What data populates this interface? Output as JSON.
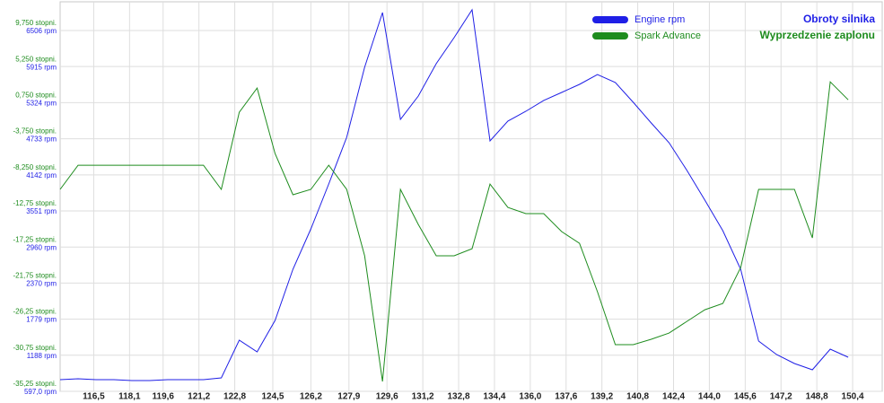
{
  "chart_data": {
    "type": "line",
    "x": [
      115.0,
      115.8,
      116.6,
      117.4,
      118.2,
      119.0,
      119.8,
      120.6,
      121.4,
      122.2,
      123.0,
      123.8,
      124.6,
      125.4,
      126.2,
      127.0,
      127.8,
      128.6,
      129.4,
      130.2,
      131.0,
      131.8,
      132.6,
      133.4,
      134.2,
      135.0,
      135.8,
      136.6,
      137.4,
      138.2,
      139.0,
      139.8,
      140.6,
      141.4,
      142.2,
      143.0,
      143.8,
      144.6,
      145.4,
      146.2,
      147.0,
      147.8,
      148.6,
      149.4,
      150.2
    ],
    "series": [
      {
        "name": "Engine rpm",
        "color": "#1f1fe6",
        "axis": "y",
        "values": [
          788,
          803,
          788,
          788,
          773,
          773,
          788,
          788,
          788,
          818,
          1435,
          1244,
          1758,
          2596,
          3258,
          3993,
          4757,
          5904,
          6800,
          5051,
          5433,
          5963,
          6389,
          6845,
          4698,
          5022,
          5183,
          5360,
          5492,
          5624,
          5786,
          5654,
          5330,
          4992,
          4669,
          4213,
          3728,
          3228,
          2596,
          1420,
          1200,
          1053,
          950,
          1288,
          1156
        ]
      },
      {
        "name": "Spark Advance",
        "color": "#1e8c1e",
        "axis": "y2",
        "values": [
          -10.07,
          -7.05,
          -7.05,
          -7.05,
          -7.05,
          -7.05,
          -7.05,
          -7.05,
          -7.05,
          -10.07,
          -0.45,
          2.57,
          -5.6,
          -10.74,
          -10.07,
          -7.05,
          -10.07,
          -18.35,
          -34.02,
          -10.07,
          -14.44,
          -18.35,
          -18.35,
          -17.46,
          -9.4,
          -12.31,
          -13.09,
          -13.09,
          -15.33,
          -16.79,
          -22.83,
          -29.43,
          -29.43,
          -28.76,
          -27.98,
          -26.52,
          -25.07,
          -24.29,
          -19.81,
          -10.07,
          -10.07,
          -10.07,
          -16.12,
          3.35,
          1.11
        ]
      }
    ],
    "y_label": "Obroty silnika",
    "y2_label": "Wyprzedzenie zaplonu",
    "xlim": [
      115.0,
      151.72
    ],
    "xticks": [
      {
        "value": 116.5,
        "label": "116,5"
      },
      {
        "value": 118.1,
        "label": "118,1"
      },
      {
        "value": 119.6,
        "label": "119,6"
      },
      {
        "value": 121.2,
        "label": "121,2"
      },
      {
        "value": 122.8,
        "label": "122,8"
      },
      {
        "value": 124.5,
        "label": "124,5"
      },
      {
        "value": 126.2,
        "label": "126,2"
      },
      {
        "value": 127.9,
        "label": "127,9"
      },
      {
        "value": 129.6,
        "label": "129,6"
      },
      {
        "value": 131.2,
        "label": "131,2"
      },
      {
        "value": 132.8,
        "label": "132,8"
      },
      {
        "value": 134.4,
        "label": "134,4"
      },
      {
        "value": 136.0,
        "label": "136,0"
      },
      {
        "value": 137.6,
        "label": "137,6"
      },
      {
        "value": 139.2,
        "label": "139,2"
      },
      {
        "value": 140.8,
        "label": "140,8"
      },
      {
        "value": 142.4,
        "label": "142,4"
      },
      {
        "value": 144.0,
        "label": "144,0"
      },
      {
        "value": 145.6,
        "label": "145,6"
      },
      {
        "value": 147.2,
        "label": "147,2"
      },
      {
        "value": 148.8,
        "label": "148,8"
      },
      {
        "value": 150.4,
        "label": "150,4"
      }
    ],
    "ylim": [
      597,
      6976
    ],
    "yticks": [
      {
        "value": 597,
        "label": "597,0 rpm"
      },
      {
        "value": 1188,
        "label": "1188 rpm"
      },
      {
        "value": 1779,
        "label": "1779 rpm"
      },
      {
        "value": 2370,
        "label": "2370 rpm"
      },
      {
        "value": 2960,
        "label": "2960 rpm"
      },
      {
        "value": 3551,
        "label": "3551 rpm"
      },
      {
        "value": 4142,
        "label": "4142 rpm"
      },
      {
        "value": 4733,
        "label": "4733 rpm"
      },
      {
        "value": 5324,
        "label": "5324 rpm"
      },
      {
        "value": 5915,
        "label": "5915 rpm"
      },
      {
        "value": 6506,
        "label": "6506 rpm"
      }
    ],
    "y2lim": [
      -35.25,
      13.33
    ],
    "y2ticks": [
      {
        "value": -35.25,
        "label": "-35,25 stopni."
      },
      {
        "value": -30.75,
        "label": "-30,75 stopni."
      },
      {
        "value": -26.25,
        "label": "-26,25 stopni."
      },
      {
        "value": -21.75,
        "label": "-21,75 stopni."
      },
      {
        "value": -17.25,
        "label": "-17,25 stopni."
      },
      {
        "value": -12.75,
        "label": "-12,75 stopni."
      },
      {
        "value": -8.25,
        "label": "-8,250 stopni."
      },
      {
        "value": -3.75,
        "label": "-3,750 stopni."
      },
      {
        "value": 0.75,
        "label": "0,750 stopni."
      },
      {
        "value": 5.25,
        "label": "5,250 stopni."
      },
      {
        "value": 9.75,
        "label": "9,750 stopni."
      }
    ],
    "grid": true
  }
}
